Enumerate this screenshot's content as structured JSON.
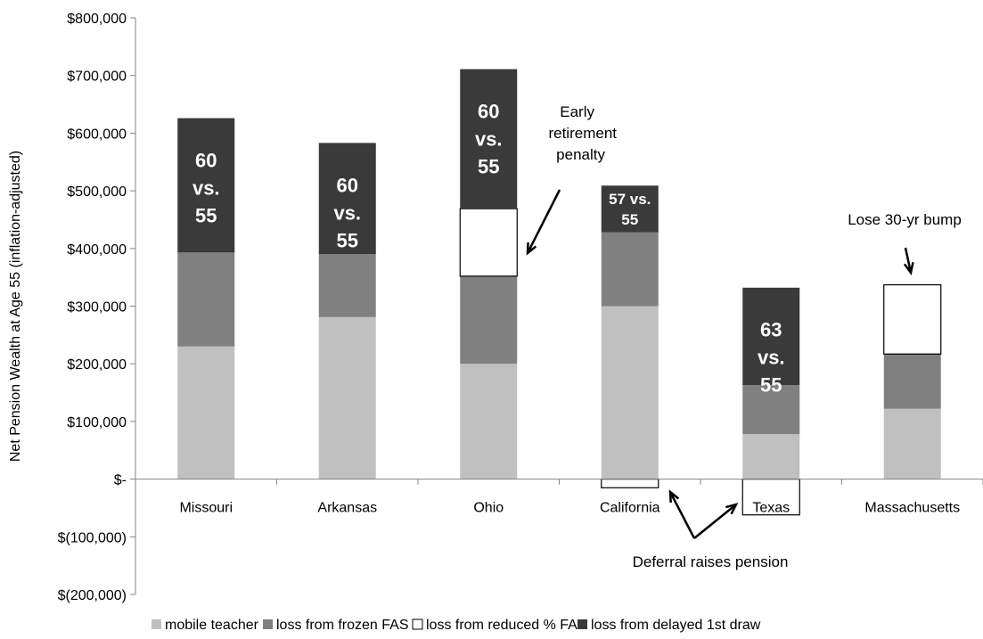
{
  "chart_data": {
    "type": "bar",
    "stacked": true,
    "ylabel": "Net Pension Wealth at Age 55 (inflation-adjusted)",
    "ylim": [
      -200000,
      800000
    ],
    "yticks": [
      800000,
      700000,
      600000,
      500000,
      400000,
      300000,
      200000,
      100000,
      0,
      -100000,
      -200000
    ],
    "ytick_labels": [
      "$800,000",
      "$700,000",
      "$600,000",
      "$500,000",
      "$400,000",
      "$300,000",
      "$200,000",
      "$100,000",
      "$-",
      "$(100,000)",
      "$(200,000)"
    ],
    "categories": [
      "Missouri",
      "Arkansas",
      "Ohio",
      "California",
      "Texas",
      "Massachusetts"
    ],
    "series": [
      {
        "name": "mobile teacher",
        "color": "#c0c0c0",
        "stroke": "none",
        "values": [
          230000,
          281000,
          200000,
          300000,
          78000,
          122000
        ]
      },
      {
        "name": "loss from frozen FAS",
        "color": "#808080",
        "stroke": "none",
        "values": [
          163000,
          109000,
          152000,
          128000,
          85000,
          95000
        ]
      },
      {
        "name": "loss from reduced % FAS",
        "color": "#ffffff",
        "stroke": "#000000",
        "values": [
          0,
          0,
          117000,
          -15000,
          -62000,
          120000
        ]
      },
      {
        "name": "loss from delayed 1st draw",
        "color": "#3a3a3a",
        "stroke": "none",
        "values": [
          233000,
          193000,
          242000,
          81000,
          169000,
          0
        ]
      }
    ],
    "bar_labels": [
      {
        "category": "Missouri",
        "lines": [
          "60",
          "vs.",
          "55"
        ]
      },
      {
        "category": "Arkansas",
        "lines": [
          "60",
          "vs.",
          "55"
        ]
      },
      {
        "category": "Ohio",
        "lines": [
          "60",
          "vs.",
          "55"
        ]
      },
      {
        "category": "California",
        "lines": [
          "57 vs.",
          "55"
        ]
      },
      {
        "category": "Texas",
        "lines": [
          "63",
          "vs.",
          "55"
        ]
      }
    ],
    "annotations": [
      {
        "id": "early-retirement",
        "lines": [
          "Early",
          "retirement",
          "penalty"
        ]
      },
      {
        "id": "lose-30yr",
        "lines": [
          "Lose 30-yr bump"
        ]
      },
      {
        "id": "deferral",
        "lines": [
          "Deferral raises pension"
        ]
      }
    ],
    "legend_position": "bottom",
    "grid": false
  }
}
